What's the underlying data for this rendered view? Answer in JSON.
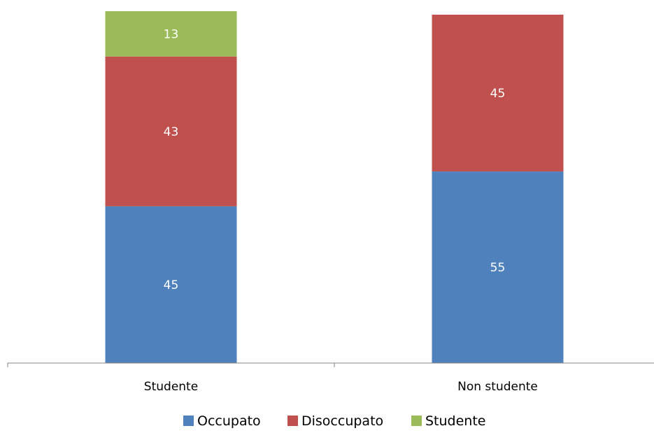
{
  "chart_data": {
    "type": "bar",
    "stacked": true,
    "categories": [
      "Studente",
      "Non studente"
    ],
    "series": [
      {
        "name": "Occupato",
        "color": "#4F81BD",
        "values": [
          45,
          55
        ],
        "labels": [
          "45",
          "55"
        ]
      },
      {
        "name": "Disoccupato",
        "color": "#C0504D",
        "values": [
          43,
          45
        ],
        "labels": [
          "43",
          "45"
        ]
      },
      {
        "name": "Studente",
        "color": "#9BBB59",
        "values": [
          13,
          0
        ],
        "labels": [
          "13",
          "-"
        ]
      }
    ],
    "ylim": [
      0,
      100
    ],
    "grid": false,
    "legend_position": "bottom"
  }
}
